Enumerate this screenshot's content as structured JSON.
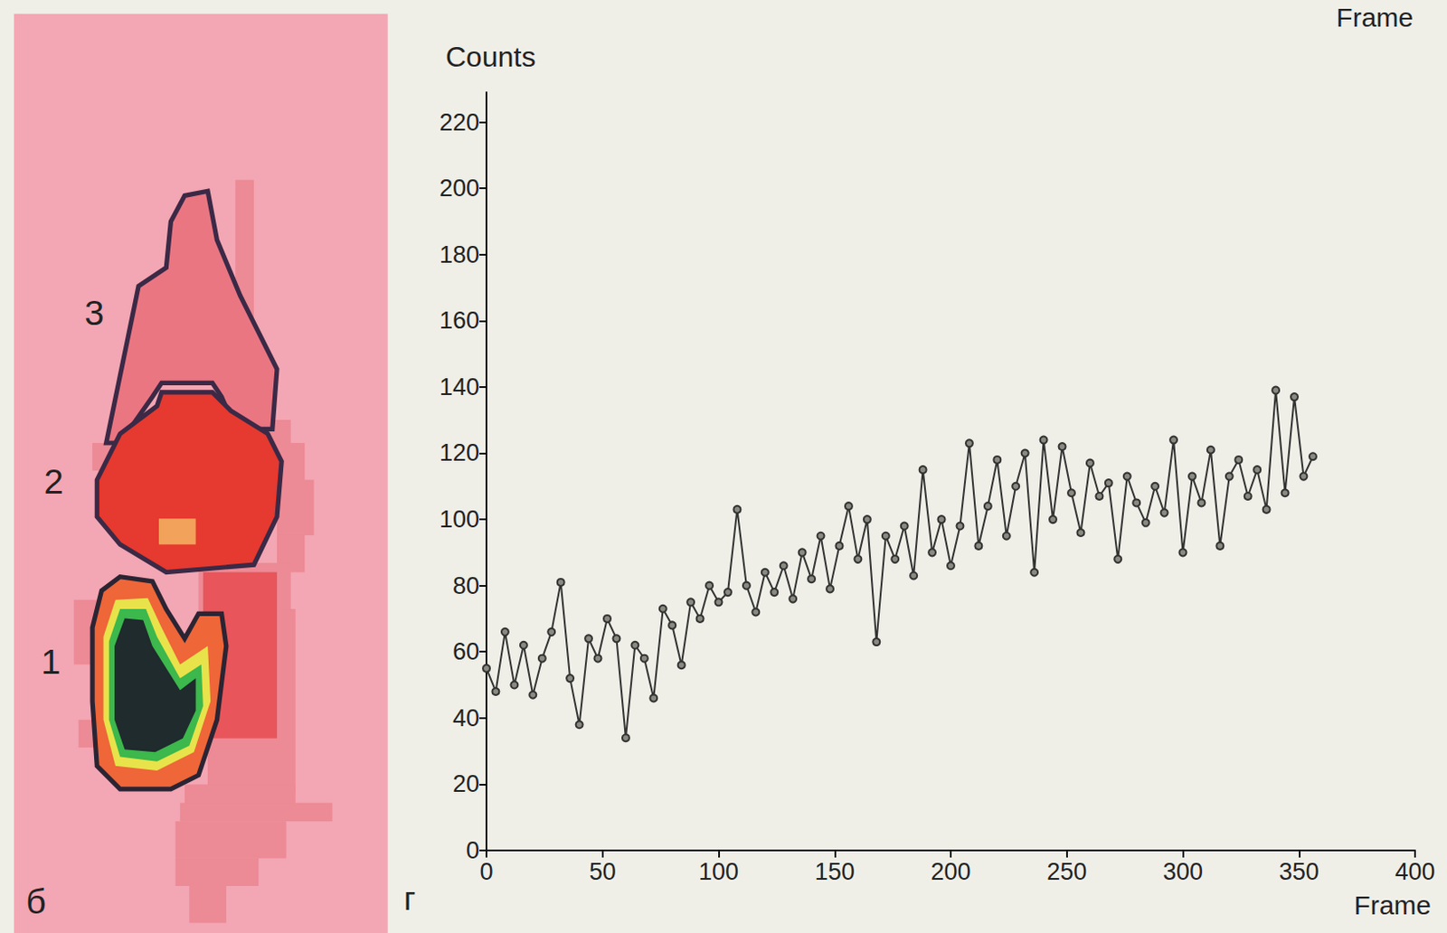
{
  "header_text": "Frame",
  "image_panel": {
    "panel_label": "б",
    "region_labels": [
      "1",
      "2",
      "3"
    ]
  },
  "chart_data": {
    "type": "line",
    "panel_label": "г",
    "x_label": "Frame",
    "y_label": "Counts",
    "color": "#333333",
    "marker": "circle",
    "grid": false,
    "xlim": [
      0,
      400
    ],
    "xticks": [
      0,
      50,
      100,
      150,
      200,
      250,
      300,
      350,
      400
    ],
    "ylim": [
      0,
      229
    ],
    "yticks": [
      0,
      20,
      40,
      60,
      80,
      100,
      120,
      140,
      160,
      180,
      200,
      220
    ],
    "x": [
      0,
      4,
      8,
      12,
      16,
      20,
      24,
      28,
      32,
      36,
      40,
      44,
      48,
      52,
      56,
      60,
      64,
      68,
      72,
      76,
      80,
      84,
      88,
      92,
      96,
      100,
      104,
      108,
      112,
      116,
      120,
      124,
      128,
      132,
      136,
      140,
      144,
      148,
      152,
      156,
      160,
      164,
      168,
      172,
      176,
      180,
      184,
      188,
      192,
      196,
      200,
      204,
      208,
      212,
      216,
      220,
      224,
      228,
      232,
      236,
      240,
      244,
      248,
      252,
      256,
      260,
      264,
      268,
      272,
      276,
      280,
      284,
      288,
      292,
      296,
      300,
      304,
      308,
      312,
      316,
      320,
      324,
      328,
      332,
      336,
      340,
      344,
      348,
      352,
      356
    ],
    "values": [
      55,
      48,
      66,
      50,
      62,
      47,
      58,
      66,
      81,
      52,
      38,
      64,
      58,
      70,
      64,
      34,
      62,
      58,
      46,
      73,
      68,
      56,
      75,
      70,
      80,
      75,
      78,
      103,
      80,
      72,
      84,
      78,
      86,
      76,
      90,
      82,
      95,
      79,
      92,
      104,
      88,
      100,
      63,
      95,
      88,
      98,
      83,
      115,
      90,
      100,
      86,
      98,
      123,
      92,
      104,
      118,
      95,
      110,
      120,
      84,
      124,
      100,
      122,
      108,
      96,
      117,
      107,
      111,
      88,
      113,
      105,
      99,
      110,
      102,
      124,
      90,
      113,
      105,
      121,
      92,
      113,
      118,
      107,
      115,
      103,
      139,
      108,
      137,
      113,
      119
    ]
  }
}
